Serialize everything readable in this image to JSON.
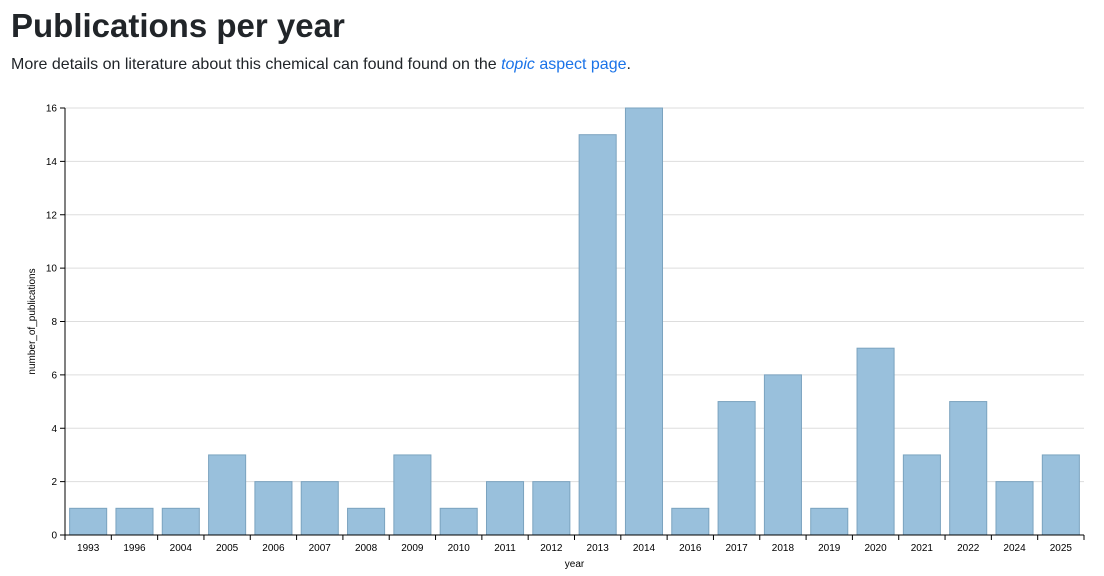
{
  "header": {
    "title": "Publications per year",
    "intro_before": "More details on literature about this chemical can found found on the ",
    "link_em": "topic",
    "link_rest": " aspect page",
    "intro_after": "."
  },
  "colors": {
    "bar_fill": "#99c0dc",
    "bar_stroke": "#7ba3bf",
    "grid": "#dddddd",
    "link": "#1a73e8"
  },
  "chart_data": {
    "type": "bar",
    "title": "",
    "xlabel": "year",
    "ylabel": "number_of_publications",
    "ylim": [
      0,
      16
    ],
    "yticks": [
      0,
      2,
      4,
      6,
      8,
      10,
      12,
      14,
      16
    ],
    "grid": true,
    "categories": [
      "1993",
      "1996",
      "2004",
      "2005",
      "2006",
      "2007",
      "2008",
      "2009",
      "2010",
      "2011",
      "2012",
      "2013",
      "2014",
      "2016",
      "2017",
      "2018",
      "2019",
      "2020",
      "2021",
      "2022",
      "2024",
      "2025"
    ],
    "values": [
      1,
      1,
      1,
      3,
      2,
      2,
      1,
      3,
      1,
      2,
      2,
      15,
      16,
      1,
      5,
      6,
      1,
      7,
      3,
      5,
      2,
      3
    ]
  }
}
